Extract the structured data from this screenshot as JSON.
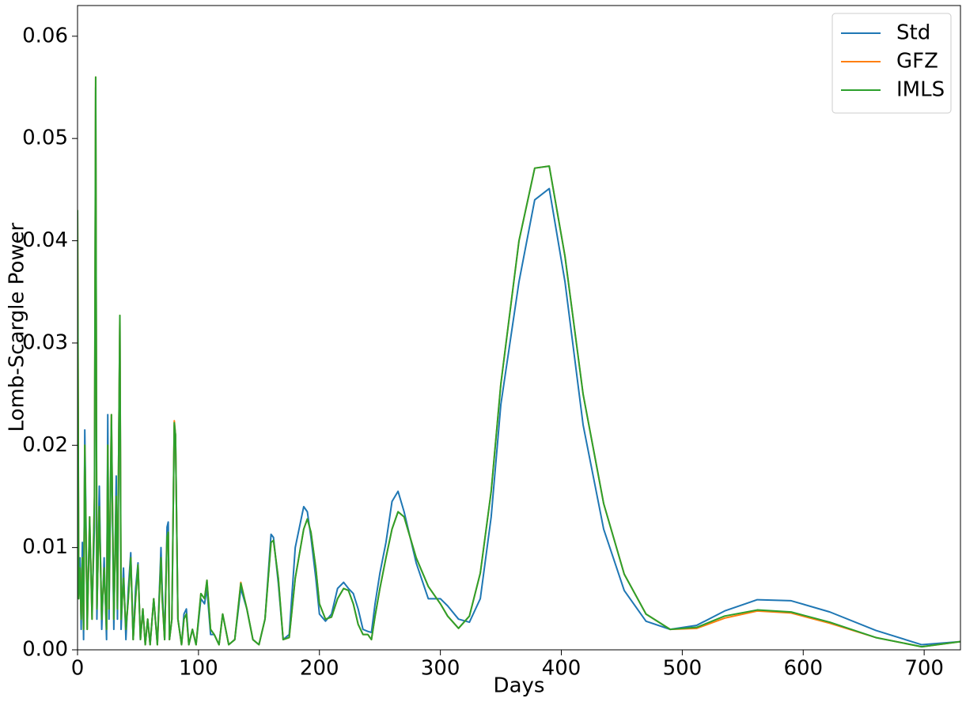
{
  "chart_data": {
    "type": "line",
    "xlabel": "Days",
    "ylabel": "Lomb-Scargle Power",
    "xlim": [
      0,
      730
    ],
    "ylim": [
      0,
      0.063
    ],
    "xticks": [
      0,
      100,
      200,
      300,
      400,
      500,
      600,
      700
    ],
    "yticks": [
      {
        "value": 0,
        "label": "0.00"
      },
      {
        "value": 0.01,
        "label": "0.01"
      },
      {
        "value": 0.02,
        "label": "0.02"
      },
      {
        "value": 0.03,
        "label": "0.03"
      },
      {
        "value": 0.04,
        "label": "0.04"
      },
      {
        "value": 0.05,
        "label": "0.05"
      },
      {
        "value": 0.06,
        "label": "0.06"
      }
    ],
    "grid": false,
    "legend": "upper right",
    "x": [
      0,
      1,
      2,
      3,
      4,
      5,
      6,
      8,
      10,
      12,
      14,
      15,
      16,
      18,
      20,
      22,
      24,
      25,
      26,
      28,
      30,
      32,
      33,
      34,
      35,
      36,
      38,
      40,
      42,
      44,
      46,
      48,
      50,
      52,
      54,
      56,
      58,
      60,
      63,
      66,
      69,
      70,
      72,
      74,
      75,
      76,
      78,
      80,
      81,
      83,
      86,
      88,
      90,
      92,
      95,
      98,
      102,
      105,
      107,
      110,
      113,
      117,
      120,
      125,
      130,
      135,
      140,
      145,
      150,
      155,
      160,
      162,
      166,
      170,
      175,
      180,
      187,
      190,
      193,
      197,
      200,
      205,
      210,
      215,
      220,
      224,
      228,
      232,
      236,
      240,
      243,
      246,
      250,
      255,
      260,
      265,
      270,
      275,
      280,
      290,
      300,
      306,
      315,
      324,
      333,
      342,
      350,
      365,
      378,
      390,
      403,
      418,
      435,
      452,
      470,
      490,
      512,
      535,
      562,
      590,
      622,
      660,
      698,
      730
    ],
    "series": [
      {
        "name": "Std",
        "color": "#1f77b4",
        "values": [
          0.035,
          0.006,
          0.009,
          0.002,
          0.0105,
          0.001,
          0.0215,
          0.003,
          0.012,
          0.004,
          0.012,
          0.055,
          0.003,
          0.016,
          0.002,
          0.009,
          0.001,
          0.023,
          0.003,
          0.022,
          0.002,
          0.017,
          0.003,
          0.019,
          0.032,
          0.002,
          0.008,
          0.001,
          0.006,
          0.0095,
          0.001,
          0.006,
          0.0085,
          0.001,
          0.004,
          0.0005,
          0.003,
          0.0005,
          0.005,
          0.0005,
          0.01,
          0.006,
          0.001,
          0.012,
          0.0125,
          0.001,
          0.003,
          0.022,
          0.021,
          0.003,
          0.0005,
          0.0035,
          0.004,
          0.0005,
          0.002,
          0.0005,
          0.005,
          0.0045,
          0.006,
          0.0015,
          0.0015,
          0.0005,
          0.0035,
          0.0005,
          0.001,
          0.006,
          0.004,
          0.001,
          0.0005,
          0.003,
          0.0113,
          0.011,
          0.0065,
          0.001,
          0.0015,
          0.01,
          0.014,
          0.0135,
          0.011,
          0.007,
          0.0035,
          0.0028,
          0.0035,
          0.006,
          0.0066,
          0.006,
          0.0055,
          0.004,
          0.002,
          0.0018,
          0.0017,
          0.0045,
          0.0075,
          0.0105,
          0.0145,
          0.0155,
          0.0135,
          0.011,
          0.0085,
          0.005,
          0.005,
          0.0043,
          0.003,
          0.0027,
          0.005,
          0.013,
          0.024,
          0.036,
          0.044,
          0.0451,
          0.036,
          0.022,
          0.0118,
          0.0058,
          0.0028,
          0.002,
          0.0024,
          0.0038,
          0.0049,
          0.0048,
          0.0037,
          0.0019,
          0.0005,
          0.0008
        ]
      },
      {
        "name": "GFZ",
        "color": "#ff7f0e",
        "values": [
          0.043,
          0.005,
          0.008,
          0.003,
          0.009,
          0.002,
          0.02,
          0.002,
          0.013,
          0.003,
          0.015,
          0.056,
          0.004,
          0.014,
          0.003,
          0.008,
          0.002,
          0.02,
          0.004,
          0.023,
          0.003,
          0.015,
          0.004,
          0.019,
          0.0327,
          0.003,
          0.007,
          0.002,
          0.005,
          0.009,
          0.001,
          0.005,
          0.0083,
          0.001,
          0.004,
          0.0005,
          0.003,
          0.0005,
          0.005,
          0.0005,
          0.009,
          0.005,
          0.001,
          0.011,
          0.0115,
          0.001,
          0.003,
          0.0224,
          0.021,
          0.003,
          0.0005,
          0.003,
          0.0035,
          0.0005,
          0.002,
          0.0005,
          0.0055,
          0.005,
          0.0068,
          0.002,
          0.0015,
          0.0005,
          0.0035,
          0.0005,
          0.001,
          0.0066,
          0.004,
          0.001,
          0.0005,
          0.003,
          0.0105,
          0.0107,
          0.007,
          0.001,
          0.0012,
          0.007,
          0.0118,
          0.0128,
          0.0115,
          0.008,
          0.0045,
          0.003,
          0.0032,
          0.005,
          0.006,
          0.0058,
          0.0045,
          0.0025,
          0.0015,
          0.0015,
          0.001,
          0.0033,
          0.006,
          0.009,
          0.0118,
          0.0135,
          0.013,
          0.011,
          0.009,
          0.0062,
          0.0045,
          0.0033,
          0.0021,
          0.0033,
          0.0075,
          0.0155,
          0.026,
          0.04,
          0.0471,
          0.0473,
          0.0385,
          0.025,
          0.0143,
          0.0074,
          0.0035,
          0.002,
          0.0021,
          0.0031,
          0.0038,
          0.0036,
          0.0026,
          0.0012,
          0.0003,
          0.0008
        ]
      },
      {
        "name": "IMLS",
        "color": "#2ca02c",
        "values": [
          0.043,
          0.005,
          0.008,
          0.003,
          0.009,
          0.002,
          0.02,
          0.002,
          0.013,
          0.003,
          0.015,
          0.056,
          0.004,
          0.014,
          0.003,
          0.008,
          0.002,
          0.02,
          0.004,
          0.023,
          0.003,
          0.015,
          0.004,
          0.019,
          0.0327,
          0.003,
          0.007,
          0.002,
          0.005,
          0.009,
          0.001,
          0.005,
          0.0083,
          0.001,
          0.004,
          0.0005,
          0.003,
          0.0005,
          0.005,
          0.0005,
          0.009,
          0.005,
          0.001,
          0.011,
          0.0115,
          0.001,
          0.003,
          0.0222,
          0.021,
          0.003,
          0.0005,
          0.003,
          0.0035,
          0.0005,
          0.002,
          0.0005,
          0.0055,
          0.005,
          0.0068,
          0.002,
          0.0015,
          0.0005,
          0.0035,
          0.0005,
          0.001,
          0.0065,
          0.004,
          0.001,
          0.0005,
          0.003,
          0.0105,
          0.0107,
          0.007,
          0.001,
          0.0012,
          0.007,
          0.0118,
          0.0128,
          0.0115,
          0.008,
          0.0045,
          0.003,
          0.0032,
          0.005,
          0.006,
          0.0058,
          0.0045,
          0.0025,
          0.0015,
          0.0015,
          0.001,
          0.0033,
          0.006,
          0.009,
          0.0118,
          0.0135,
          0.013,
          0.011,
          0.009,
          0.0062,
          0.0045,
          0.0033,
          0.0021,
          0.0033,
          0.0075,
          0.0155,
          0.026,
          0.04,
          0.0471,
          0.0473,
          0.0385,
          0.025,
          0.0143,
          0.0074,
          0.0035,
          0.002,
          0.0022,
          0.0033,
          0.0039,
          0.0037,
          0.0027,
          0.0012,
          0.0003,
          0.0008
        ]
      }
    ]
  }
}
